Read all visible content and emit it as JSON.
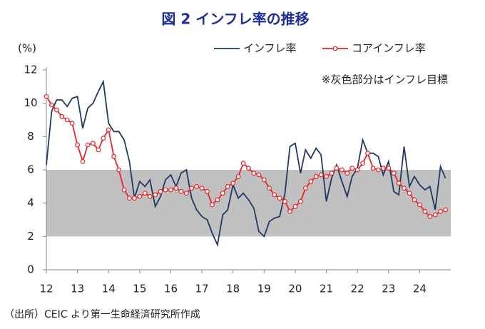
{
  "chart_data": {
    "type": "line",
    "title": "図 2  インフレ率の推移",
    "y_unit": "(%)",
    "annotation": "※灰色部分はインフレ目標",
    "source": "（出所）CEIC より第一生命経済研究所作成",
    "target_band": {
      "values": [
        2,
        6
      ],
      "color": "#c0c0c0"
    },
    "x": [
      12,
      12.17,
      12.33,
      12.5,
      12.67,
      12.83,
      13,
      13.17,
      13.33,
      13.5,
      13.67,
      13.83,
      14,
      14.17,
      14.33,
      14.5,
      14.67,
      14.83,
      15,
      15.17,
      15.33,
      15.5,
      15.67,
      15.83,
      16,
      16.17,
      16.33,
      16.5,
      16.67,
      16.83,
      17,
      17.17,
      17.33,
      17.5,
      17.67,
      17.83,
      18,
      18.17,
      18.33,
      18.5,
      18.67,
      18.83,
      19,
      19.17,
      19.33,
      19.5,
      19.67,
      19.83,
      20,
      20.17,
      20.33,
      20.5,
      20.67,
      20.83,
      21,
      21.17,
      21.33,
      21.5,
      21.67,
      21.83,
      22,
      22.17,
      22.33,
      22.5,
      22.67,
      22.83,
      23,
      23.17,
      23.33,
      23.5,
      23.67,
      23.83,
      24,
      24.17,
      24.33,
      24.5,
      24.67,
      24.83
    ],
    "series": [
      {
        "name": "インフレ率",
        "color": "#1f3864",
        "markers": false,
        "values": [
          6.3,
          9.5,
          10.2,
          10.2,
          9.8,
          10.3,
          10.4,
          8.5,
          9.7,
          10.0,
          10.7,
          11.3,
          8.8,
          8.3,
          8.3,
          7.8,
          6.5,
          4.3,
          5.3,
          5.0,
          5.4,
          3.8,
          4.4,
          5.4,
          5.7,
          5.0,
          5.8,
          6.0,
          4.3,
          3.6,
          3.2,
          3.0,
          2.2,
          1.5,
          3.3,
          3.6,
          5.1,
          4.3,
          4.6,
          4.2,
          3.7,
          2.3,
          2.0,
          2.9,
          3.1,
          3.2,
          4.6,
          7.4,
          7.6,
          5.8,
          7.2,
          6.7,
          7.3,
          6.9,
          4.1,
          5.5,
          6.3,
          5.3,
          4.4,
          5.6,
          6.1,
          7.8,
          7.0,
          7.0,
          6.8,
          5.7,
          6.5,
          4.7,
          4.5,
          7.4,
          5.0,
          5.6,
          5.1,
          4.8,
          5.0,
          3.6,
          6.2,
          5.5
        ]
      },
      {
        "name": "コアインフレ率",
        "color": "#e8262a",
        "markers": true,
        "values": [
          10.4,
          9.9,
          9.6,
          9.2,
          9.0,
          8.8,
          7.5,
          6.5,
          7.5,
          7.6,
          7.2,
          7.9,
          8.4,
          6.8,
          6.0,
          4.8,
          4.3,
          4.3,
          4.4,
          4.6,
          4.4,
          4.5,
          4.7,
          4.8,
          4.8,
          4.9,
          4.7,
          4.6,
          4.9,
          5.0,
          4.9,
          4.7,
          3.9,
          4.2,
          4.6,
          5.0,
          5.2,
          5.6,
          6.4,
          6.1,
          5.8,
          5.7,
          5.4,
          4.9,
          4.5,
          4.3,
          4.1,
          3.5,
          3.8,
          4.1,
          4.9,
          5.3,
          5.6,
          5.7,
          5.6,
          5.8,
          6.1,
          6.0,
          5.8,
          6.1,
          6.0,
          6.4,
          7.0,
          6.1,
          6.0,
          6.1,
          6.1,
          5.8,
          5.2,
          4.9,
          4.6,
          4.2,
          3.9,
          3.5,
          3.2,
          3.3,
          3.5,
          3.6
        ]
      }
    ],
    "xlim": [
      12,
      25
    ],
    "xticks": [
      12,
      13,
      14,
      15,
      16,
      17,
      18,
      19,
      20,
      21,
      22,
      23,
      24
    ],
    "ylim": [
      0,
      12
    ],
    "yticks": [
      0,
      2,
      4,
      6,
      8,
      10,
      12
    ],
    "legend": "top"
  }
}
